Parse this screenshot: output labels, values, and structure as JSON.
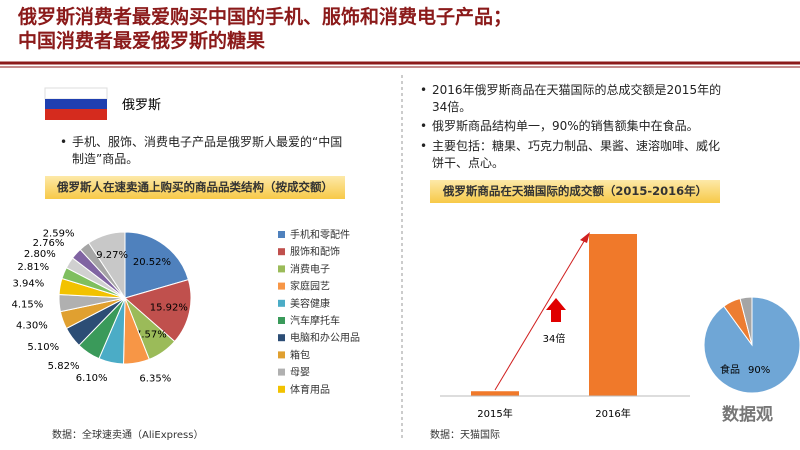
{
  "slide": {
    "title": [
      "俄罗斯消费者最爱购买中国的手机、服饰和消费电子产品；",
      "中国消费者最爱俄罗斯的糖果"
    ],
    "country": "俄罗斯",
    "left_bullets": [
      "手机、服饰、消费电子产品是俄罗斯人最爱的“中国制造”商品。"
    ],
    "right_bullets": [
      "2016年俄罗斯商品在天猫国际的总成交额是2015年的34倍。",
      "俄罗斯商品结构单一，90%的销售额集中在食品。",
      "主要包括：糖果、巧克力制品、果酱、速溶咖啡、威化饼干、点心。"
    ],
    "left_source": "数据：全球速卖通（AliExpress）",
    "right_source": "数据：天猫国际",
    "watermark": "数据观"
  },
  "chart_data": [
    {
      "type": "pie",
      "title": "俄罗斯人在速卖通上购买的商品品类结构（按成交额）",
      "categories": [
        "手机和零配件",
        "服饰和配饰",
        "消费电子",
        "家庭园艺",
        "美容健康",
        "汽车摩托车",
        "电脑和办公用品",
        "箱包",
        "母婴",
        "体育用品",
        null,
        null,
        null,
        null,
        null
      ],
      "values": [
        20.52,
        15.92,
        7.57,
        6.35,
        6.1,
        5.82,
        5.1,
        4.3,
        4.15,
        3.94,
        2.81,
        2.8,
        2.76,
        2.59,
        9.27
      ],
      "value_labels": [
        "20.52%",
        "15.92%",
        "7.57%",
        "6.35%",
        "6.10%",
        "5.82%",
        "5.10%",
        "4.30%",
        "4.15%",
        "3.94%",
        "2.81%",
        "2.80%",
        "2.76%",
        "2.59%",
        "9.27%"
      ],
      "colors": [
        "#4f81bd",
        "#c0504d",
        "#9bbb59",
        "#f79646",
        "#4bacc6",
        "#3a9a5a",
        "#2c4d75",
        "#e0a030",
        "#b0b0b0",
        "#f2c200",
        "#7fbf5f",
        "#d0d0d0",
        "#8064a2",
        "#a5a5a5",
        "#c8c8c8"
      ]
    },
    {
      "type": "bar",
      "title": "俄罗斯商品在天猫国际的成交额（2015-2016年）",
      "categories": [
        "2015年",
        "2016年"
      ],
      "values": [
        1,
        34
      ],
      "color": "#f0792a",
      "annotation": "34倍"
    },
    {
      "type": "pie",
      "categories": [
        "食品",
        null,
        null
      ],
      "values": [
        90,
        6,
        4
      ],
      "value_labels": [
        "90%",
        null,
        null
      ],
      "colors": [
        "#6fa6d6",
        "#ed7d31",
        "#a5a5a5"
      ]
    }
  ]
}
